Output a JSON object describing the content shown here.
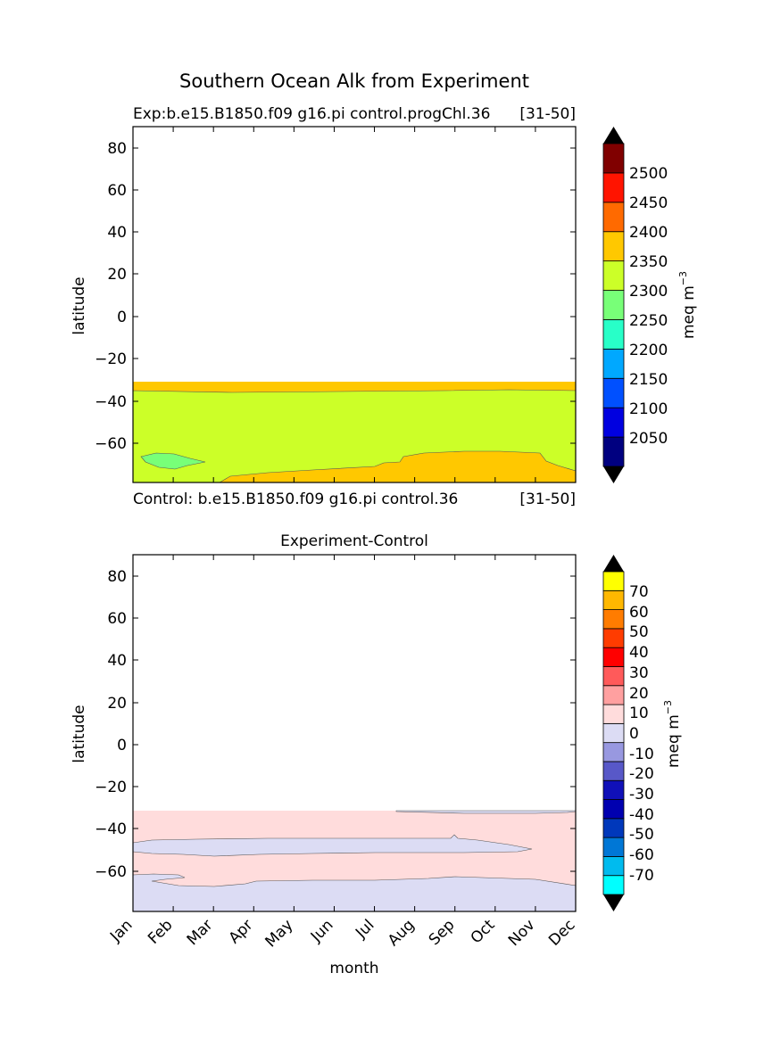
{
  "figure_title": "Southern Ocean Alk from Experiment",
  "colors": {
    "top_levels": [
      "#000080",
      "#0000e0",
      "#0050ff",
      "#00a8ff",
      "#28ffc8",
      "#78ff78",
      "#ccff28",
      "#ffc800",
      "#ff6a00",
      "#ff1400",
      "#800000"
    ],
    "bottom_levels": [
      "#00ffff",
      "#00bbee",
      "#0077d6",
      "#0038bb",
      "#0000b0",
      "#1010b8",
      "#5858c8",
      "#9898e0",
      "#dcdcf4",
      "#ffdcdc",
      "#ffa0a0",
      "#ff5a5a",
      "#ff0000",
      "#ff3c00",
      "#ff7c00",
      "#ffb800",
      "#ffff00"
    ],
    "extend_color": "#000000"
  },
  "chart_data": [
    {
      "type": "heatmap",
      "title": "Exp:b.e15.B1850.f09 g16.pi control.progChl.36",
      "title_right": "[31-50]",
      "bottom_left": "Control: b.e15.B1850.f09 g16.pi control.36",
      "bottom_right": "[31-50]",
      "ylabel": "latitude",
      "xlabel": "",
      "ylim": [
        -78,
        90
      ],
      "yticks": [
        "80",
        "60",
        "40",
        "20",
        "0",
        "−20",
        "−40",
        "−60"
      ],
      "ytick_values": [
        80,
        60,
        40,
        20,
        0,
        -20,
        -40,
        -60
      ],
      "months": [
        "Jan",
        "Feb",
        "Mar",
        "Apr",
        "May",
        "Jun",
        "Jul",
        "Aug",
        "Sep",
        "Oct",
        "Nov",
        "Dec"
      ],
      "show_xticklabels": false,
      "data_northern_edge_lat": -31,
      "regions": [
        {
          "value_range": "2350-2400",
          "description": "northern band",
          "lat_range": [
            -36,
            -31
          ]
        },
        {
          "value_range": "2300-2350",
          "description": "main body",
          "lat_range": [
            -78,
            -36
          ]
        },
        {
          "value_range": "2250-2300",
          "description": "Feb patch near -68",
          "lat_range": [
            -72,
            -65
          ]
        },
        {
          "value_range": "2350-2400",
          "description": "southern region Apr-Dec",
          "lat_range": [
            -78,
            -63
          ]
        }
      ],
      "colorbar": {
        "label": "meq m",
        "label_sup": "−3",
        "tick_labels": [
          "2050",
          "2100",
          "2150",
          "2200",
          "2250",
          "2300",
          "2350",
          "2400",
          "2450",
          "2500"
        ],
        "levels": [
          2000,
          2050,
          2100,
          2150,
          2200,
          2250,
          2300,
          2350,
          2400,
          2450,
          2500,
          2550
        ],
        "extend": "both"
      }
    },
    {
      "type": "heatmap",
      "title": "Experiment-Control",
      "ylabel": "latitude",
      "xlabel": "month",
      "ylim": [
        -78,
        90
      ],
      "yticks": [
        "80",
        "60",
        "40",
        "20",
        "0",
        "−20",
        "−40",
        "−60"
      ],
      "ytick_values": [
        80,
        60,
        40,
        20,
        0,
        -20,
        -40,
        -60
      ],
      "months": [
        "Jan",
        "Feb",
        "Mar",
        "Apr",
        "May",
        "Jun",
        "Jul",
        "Aug",
        "Sep",
        "Oct",
        "Nov",
        "Dec"
      ],
      "data_northern_edge_lat": -31,
      "regions": [
        {
          "value_range": "0-10",
          "description": "background",
          "lat_range": [
            -78,
            -31
          ]
        },
        {
          "value_range": "-10-0",
          "description": "mid-latitude band",
          "lat_range": [
            -53,
            -44
          ]
        },
        {
          "value_range": "-10-0",
          "description": "southern region",
          "lat_range": [
            -78,
            -62
          ]
        }
      ],
      "colorbar": {
        "label": "meq m",
        "label_sup": "−3",
        "tick_labels": [
          "-70",
          "-60",
          "-50",
          "-40",
          "-30",
          "-20",
          "-10",
          "0",
          "10",
          "20",
          "30",
          "40",
          "50",
          "60",
          "70"
        ],
        "levels": [
          -80,
          -70,
          -60,
          -50,
          -40,
          -30,
          -20,
          -10,
          0,
          10,
          20,
          30,
          40,
          50,
          60,
          70,
          80
        ],
        "extend": "both"
      }
    }
  ]
}
